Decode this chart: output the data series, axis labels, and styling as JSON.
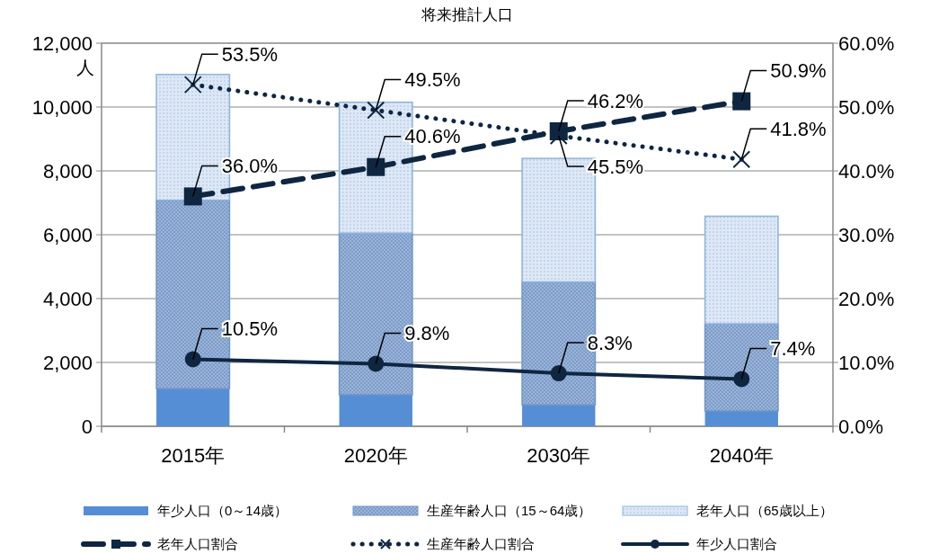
{
  "chart_data": {
    "type": "bar",
    "title": "将来推計人口",
    "ylabel": "人",
    "categories": [
      "2015年",
      "2020年",
      "2030年",
      "2040年"
    ],
    "stacked": true,
    "series": [
      {
        "name": "年少人口（0～14歳）",
        "color": "#558ed5",
        "values": [
          1180,
          990,
          670,
          480
        ]
      },
      {
        "name": "生産年齢人口（15～64歳）",
        "color": "#7095c8",
        "values": [
          5900,
          5060,
          3850,
          2730
        ]
      },
      {
        "name": "老年人口（65歳以上）",
        "color": "#8db3e2",
        "values": [
          3940,
          4100,
          3870,
          3370
        ]
      },
      {
        "name": "老年人口割合",
        "type": "line",
        "axis": "y2",
        "color": "#0f2641",
        "line_style": "dashed",
        "marker": "square",
        "values": [
          36.0,
          40.6,
          46.2,
          50.9
        ],
        "value_labels": [
          "36.0%",
          "40.6%",
          "46.2%",
          "50.9%"
        ]
      },
      {
        "name": "生産年齢人口割合",
        "type": "line",
        "axis": "y2",
        "color": "#0f2641",
        "line_style": "dotted",
        "marker": "cross",
        "values": [
          53.5,
          49.5,
          45.5,
          41.8
        ],
        "value_labels": [
          "53.5%",
          "49.5%",
          "45.5%",
          "41.8%"
        ]
      },
      {
        "name": "年少人口割合",
        "type": "line",
        "axis": "y2",
        "color": "#0f2641",
        "line_style": "solid",
        "marker": "circle",
        "values": [
          10.5,
          9.8,
          8.3,
          7.4
        ],
        "value_labels": [
          "10.5%",
          "9.8%",
          "8.3%",
          "7.4%"
        ]
      }
    ],
    "ylim": [
      0,
      12000
    ],
    "yticks": [
      {
        "value": 0,
        "label": "0"
      },
      {
        "value": 2000,
        "label": "2,000"
      },
      {
        "value": 4000,
        "label": "4,000"
      },
      {
        "value": 6000,
        "label": "6,000"
      },
      {
        "value": 8000,
        "label": "8,000"
      },
      {
        "value": 10000,
        "label": "10,000"
      },
      {
        "value": 12000,
        "label": "12,000"
      }
    ],
    "y2lim": [
      0,
      60
    ],
    "y2ticks": [
      {
        "value": 0,
        "label": "0.0%"
      },
      {
        "value": 10,
        "label": "10.0%"
      },
      {
        "value": 20,
        "label": "20.0%"
      },
      {
        "value": 30,
        "label": "30.0%"
      },
      {
        "value": 40,
        "label": "40.0%"
      },
      {
        "value": 50,
        "label": "50.0%"
      },
      {
        "value": 60,
        "label": "60.0%"
      }
    ],
    "grid": "y",
    "legend": "bottom"
  }
}
